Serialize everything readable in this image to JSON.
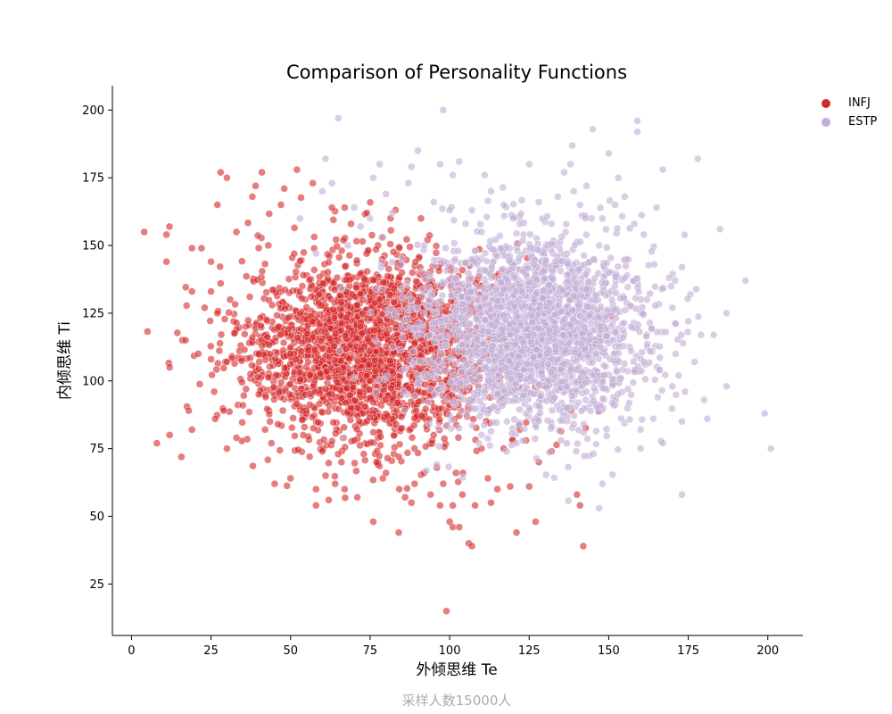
{
  "chart_data": {
    "type": "scatter",
    "title": "Comparison of Personality Functions",
    "xlabel": "外倾思维 Te",
    "ylabel": "内倾思维 Ti",
    "footnote": "采样人数15000人",
    "xlim": [
      -6,
      211
    ],
    "ylim": [
      6,
      209
    ],
    "xticks": [
      0,
      25,
      50,
      75,
      100,
      125,
      150,
      175,
      200
    ],
    "yticks": [
      25,
      50,
      75,
      100,
      125,
      150,
      175,
      200
    ],
    "grid": false,
    "legend_position": "top-right",
    "series": [
      {
        "name": "INFJ",
        "color": "#d62728",
        "opacity": 0.6,
        "center": [
          75,
          112
        ],
        "spread": [
          20,
          17
        ],
        "points": [
          [
            4,
            155
          ],
          [
            8,
            77
          ],
          [
            11,
            154
          ],
          [
            11,
            144
          ],
          [
            12,
            80
          ],
          [
            12,
            105
          ],
          [
            16,
            115
          ],
          [
            17,
            115
          ],
          [
            18,
            89
          ],
          [
            19,
            149
          ],
          [
            19,
            82
          ],
          [
            19,
            133
          ],
          [
            21,
            110
          ],
          [
            22,
            149
          ],
          [
            23,
            127
          ],
          [
            25,
            133
          ],
          [
            25,
            108
          ],
          [
            25,
            144
          ],
          [
            26,
            96
          ],
          [
            27,
            165
          ],
          [
            27,
            125
          ],
          [
            28,
            177
          ],
          [
            28,
            136
          ],
          [
            29,
            89
          ],
          [
            30,
            75
          ],
          [
            30,
            107
          ],
          [
            30,
            175
          ],
          [
            31,
            130
          ],
          [
            33,
            79
          ],
          [
            33,
            155
          ],
          [
            35,
            91
          ],
          [
            36,
            97
          ],
          [
            38,
            168
          ],
          [
            38,
            116
          ],
          [
            39,
            172
          ],
          [
            40,
            110
          ],
          [
            40,
            95
          ],
          [
            41,
            177
          ],
          [
            42,
            82
          ],
          [
            43,
            150
          ],
          [
            44,
            77
          ],
          [
            45,
            62
          ],
          [
            46,
            84
          ],
          [
            47,
            165
          ],
          [
            48,
            171
          ],
          [
            50,
            64
          ],
          [
            50,
            110
          ],
          [
            52,
            178
          ],
          [
            54,
            80
          ],
          [
            55,
            88
          ],
          [
            56,
            72
          ],
          [
            57,
            122
          ],
          [
            57,
            173
          ],
          [
            58,
            60
          ],
          [
            58,
            54
          ],
          [
            59,
            132
          ],
          [
            60,
            74
          ],
          [
            61,
            65
          ],
          [
            62,
            56
          ],
          [
            63,
            164
          ],
          [
            64,
            62
          ],
          [
            65,
            104
          ],
          [
            66,
            70
          ],
          [
            67,
            60
          ],
          [
            67,
            164
          ],
          [
            69,
            158
          ],
          [
            69,
            90
          ],
          [
            70,
            78
          ],
          [
            71,
            57
          ],
          [
            72,
            120
          ],
          [
            73,
            73
          ],
          [
            74,
            162
          ],
          [
            75,
            100
          ],
          [
            76,
            48
          ],
          [
            77,
            70
          ],
          [
            78,
            130
          ],
          [
            79,
            64
          ],
          [
            80,
            66
          ],
          [
            82,
            86
          ],
          [
            84,
            44
          ],
          [
            84,
            72
          ],
          [
            85,
            140
          ],
          [
            86,
            57
          ],
          [
            87,
            108
          ],
          [
            88,
            55
          ],
          [
            89,
            62
          ],
          [
            90,
            96
          ],
          [
            91,
            160
          ],
          [
            92,
            66
          ],
          [
            94,
            58
          ],
          [
            95,
            80
          ],
          [
            96,
            68
          ],
          [
            97,
            54
          ],
          [
            98,
            62
          ],
          [
            99,
            15
          ],
          [
            100,
            48
          ],
          [
            101,
            54
          ],
          [
            101,
            46
          ],
          [
            102,
            66
          ],
          [
            103,
            46
          ],
          [
            104,
            58
          ],
          [
            106,
            40
          ],
          [
            107,
            39
          ],
          [
            108,
            54
          ],
          [
            110,
            75
          ],
          [
            112,
            64
          ],
          [
            113,
            55
          ],
          [
            115,
            60
          ],
          [
            117,
            75
          ],
          [
            119,
            61
          ],
          [
            121,
            44
          ],
          [
            122,
            82
          ],
          [
            124,
            78
          ],
          [
            125,
            61
          ],
          [
            127,
            48
          ],
          [
            128,
            70
          ],
          [
            130,
            98
          ],
          [
            132,
            74
          ],
          [
            140,
            58
          ],
          [
            141,
            54
          ],
          [
            142,
            39
          ]
        ]
      },
      {
        "name": "ESTP",
        "color": "#c2aed6",
        "opacity": 0.6,
        "center": [
          125,
          118
        ],
        "spread": [
          18,
          17
        ],
        "points": [
          [
            53,
            160
          ],
          [
            58,
            147
          ],
          [
            60,
            170
          ],
          [
            61,
            182
          ],
          [
            63,
            173
          ],
          [
            65,
            197
          ],
          [
            68,
            150
          ],
          [
            70,
            164
          ],
          [
            72,
            157
          ],
          [
            75,
            160
          ],
          [
            76,
            175
          ],
          [
            78,
            180
          ],
          [
            79,
            153
          ],
          [
            80,
            169
          ],
          [
            82,
            162
          ],
          [
            85,
            145
          ],
          [
            87,
            173
          ],
          [
            88,
            179
          ],
          [
            90,
            185
          ],
          [
            92,
            150
          ],
          [
            95,
            166
          ],
          [
            97,
            180
          ],
          [
            98,
            200
          ],
          [
            100,
            163
          ],
          [
            101,
            176
          ],
          [
            103,
            181
          ],
          [
            105,
            158
          ],
          [
            107,
            163
          ],
          [
            108,
            148
          ],
          [
            110,
            155
          ],
          [
            111,
            176
          ],
          [
            113,
            170
          ],
          [
            115,
            146
          ],
          [
            117,
            165
          ],
          [
            120,
            160
          ],
          [
            122,
            158
          ],
          [
            125,
            180
          ],
          [
            128,
            166
          ],
          [
            130,
            149
          ],
          [
            132,
            158
          ],
          [
            134,
            168
          ],
          [
            136,
            177
          ],
          [
            138,
            180
          ],
          [
            139,
            170
          ],
          [
            141,
            165
          ],
          [
            143,
            172
          ],
          [
            145,
            193
          ],
          [
            147,
            150
          ],
          [
            148,
            160
          ],
          [
            150,
            184
          ],
          [
            150,
            140
          ],
          [
            151,
            130
          ],
          [
            152,
            165
          ],
          [
            153,
            175
          ],
          [
            155,
            168
          ],
          [
            155,
            138
          ],
          [
            156,
            97
          ],
          [
            157,
            120
          ],
          [
            158,
            158
          ],
          [
            159,
            196
          ],
          [
            159,
            192
          ],
          [
            160,
            82
          ],
          [
            160,
            75
          ],
          [
            161,
            154
          ],
          [
            162,
            130
          ],
          [
            163,
            111
          ],
          [
            164,
            86
          ],
          [
            165,
            164
          ],
          [
            166,
            104
          ],
          [
            167,
            178
          ],
          [
            167,
            77
          ],
          [
            168,
            118
          ],
          [
            169,
            138
          ],
          [
            170,
            127
          ],
          [
            170,
            98
          ],
          [
            171,
            110
          ],
          [
            172,
            102
          ],
          [
            173,
            58
          ],
          [
            173,
            85
          ],
          [
            173,
            142
          ],
          [
            174,
            96
          ],
          [
            175,
            122
          ],
          [
            177,
            107
          ],
          [
            178,
            182
          ],
          [
            179,
            117
          ],
          [
            180,
            93
          ],
          [
            181,
            86
          ],
          [
            183,
            117
          ],
          [
            185,
            156
          ],
          [
            187,
            125
          ],
          [
            187,
            98
          ],
          [
            193,
            137
          ],
          [
            199,
            88
          ],
          [
            201,
            75
          ],
          [
            148,
            62
          ],
          [
            147,
            53
          ],
          [
            143,
            96
          ],
          [
            144,
            124
          ],
          [
            146,
            110
          ],
          [
            135,
            78
          ],
          [
            137,
            90
          ],
          [
            139,
            84
          ],
          [
            110,
            80
          ],
          [
            112,
            88
          ],
          [
            115,
            95
          ],
          [
            118,
            85
          ],
          [
            121,
            77
          ],
          [
            125,
            90
          ]
        ]
      }
    ]
  }
}
